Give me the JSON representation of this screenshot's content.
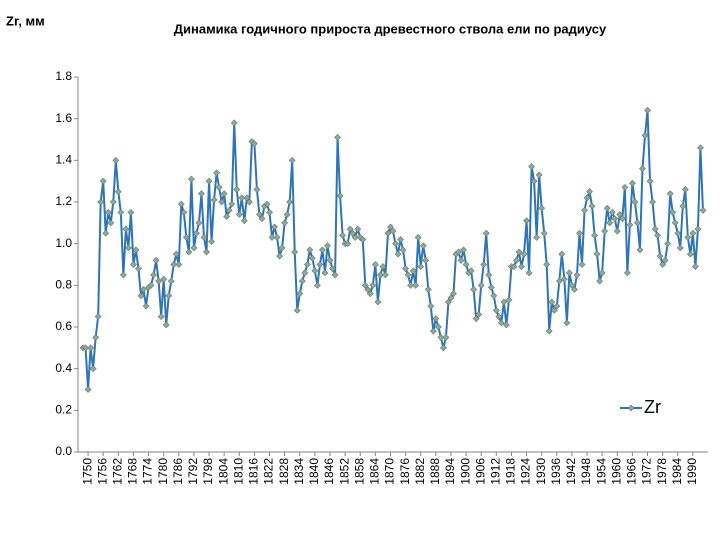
{
  "chart_data": {
    "type": "line",
    "title": "Динамика годичного прироста древестного ствола ели по радиусу",
    "y_label": "Zr, мм",
    "x": [
      1748,
      1749,
      1750,
      1751,
      1752,
      1753,
      1754,
      1755,
      1756,
      1757,
      1758,
      1759,
      1760,
      1761,
      1762,
      1763,
      1764,
      1765,
      1766,
      1767,
      1768,
      1769,
      1770,
      1771,
      1772,
      1773,
      1774,
      1775,
      1776,
      1777,
      1778,
      1779,
      1780,
      1781,
      1782,
      1783,
      1784,
      1785,
      1786,
      1787,
      1788,
      1789,
      1790,
      1791,
      1792,
      1793,
      1794,
      1795,
      1796,
      1797,
      1798,
      1799,
      1800,
      1801,
      1802,
      1803,
      1804,
      1805,
      1806,
      1807,
      1808,
      1809,
      1810,
      1811,
      1812,
      1813,
      1814,
      1815,
      1816,
      1817,
      1818,
      1819,
      1820,
      1821,
      1822,
      1823,
      1824,
      1825,
      1826,
      1827,
      1828,
      1829,
      1830,
      1831,
      1832,
      1833,
      1834,
      1835,
      1836,
      1837,
      1838,
      1839,
      1840,
      1841,
      1842,
      1843,
      1844,
      1845,
      1846,
      1847,
      1848,
      1849,
      1850,
      1851,
      1852,
      1853,
      1854,
      1855,
      1856,
      1857,
      1858,
      1859,
      1860,
      1861,
      1862,
      1863,
      1864,
      1865,
      1866,
      1867,
      1868,
      1869,
      1870,
      1871,
      1872,
      1873,
      1874,
      1875,
      1876,
      1877,
      1878,
      1879,
      1880,
      1881,
      1882,
      1883,
      1884,
      1885,
      1886,
      1887,
      1888,
      1889,
      1890,
      1891,
      1892,
      1893,
      1894,
      1895,
      1896,
      1897,
      1898,
      1899,
      1900,
      1901,
      1902,
      1903,
      1904,
      1905,
      1906,
      1907,
      1908,
      1909,
      1910,
      1911,
      1912,
      1913,
      1914,
      1915,
      1916,
      1917,
      1918,
      1919,
      1920,
      1921,
      1922,
      1923,
      1924,
      1925,
      1926,
      1927,
      1928,
      1929,
      1930,
      1931,
      1932,
      1933,
      1934,
      1935,
      1936,
      1937,
      1938,
      1939,
      1940,
      1941,
      1942,
      1943,
      1944,
      1945,
      1946,
      1947,
      1948,
      1949,
      1950,
      1951,
      1952,
      1953,
      1954,
      1955,
      1956,
      1957,
      1958,
      1959,
      1960,
      1961,
      1962,
      1963,
      1964,
      1965,
      1966,
      1967,
      1968,
      1969,
      1970,
      1971,
      1972,
      1973,
      1974,
      1975,
      1976,
      1977,
      1978,
      1979,
      1980,
      1981,
      1982,
      1983,
      1984,
      1985,
      1986,
      1987,
      1988,
      1989,
      1990,
      1991,
      1992,
      1993,
      1994
    ],
    "series": [
      {
        "name": "Zr",
        "color": "#2e75b6",
        "marker_color": "#8fa89a",
        "values": [
          0.5,
          0.5,
          0.3,
          0.5,
          0.4,
          0.55,
          0.65,
          1.2,
          1.3,
          1.05,
          1.15,
          1.1,
          1.2,
          1.4,
          1.25,
          1.15,
          0.85,
          1.07,
          0.98,
          1.15,
          0.9,
          0.97,
          0.88,
          0.75,
          0.78,
          0.7,
          0.79,
          0.8,
          0.85,
          0.92,
          0.82,
          0.65,
          0.83,
          0.61,
          0.75,
          0.82,
          0.9,
          0.95,
          0.9,
          1.19,
          1.15,
          1.03,
          0.96,
          1.31,
          0.98,
          1.05,
          1.1,
          1.24,
          1.03,
          0.96,
          1.3,
          1.01,
          1.21,
          1.34,
          1.27,
          1.2,
          1.24,
          1.13,
          1.16,
          1.19,
          1.58,
          1.26,
          1.14,
          1.22,
          1.11,
          1.22,
          1.2,
          1.49,
          1.48,
          1.26,
          1.14,
          1.12,
          1.18,
          1.19,
          1.15,
          1.03,
          1.08,
          1.03,
          0.94,
          0.98,
          1.1,
          1.14,
          1.2,
          1.4,
          0.96,
          0.68,
          0.76,
          0.82,
          0.86,
          0.9,
          0.97,
          0.93,
          0.87,
          0.8,
          0.9,
          0.97,
          0.86,
          0.99,
          0.92,
          0.88,
          0.85,
          1.51,
          1.23,
          1.04,
          1.0,
          1.0,
          1.07,
          1.05,
          1.03,
          1.07,
          1.03,
          1.02,
          0.8,
          0.78,
          0.76,
          0.8,
          0.9,
          0.72,
          0.85,
          0.89,
          0.85,
          1.05,
          1.08,
          1.06,
          1.0,
          0.95,
          1.02,
          0.97,
          0.88,
          0.85,
          0.8,
          0.87,
          0.8,
          1.03,
          0.89,
          0.99,
          0.92,
          0.78,
          0.7,
          0.58,
          0.64,
          0.6,
          0.55,
          0.5,
          0.55,
          0.72,
          0.74,
          0.76,
          0.95,
          0.96,
          0.92,
          0.97,
          0.9,
          0.86,
          0.87,
          0.78,
          0.64,
          0.66,
          0.8,
          0.9,
          1.05,
          0.85,
          0.79,
          0.75,
          0.68,
          0.65,
          0.62,
          0.72,
          0.61,
          0.73,
          0.89,
          0.89,
          0.92,
          0.96,
          0.89,
          0.95,
          1.11,
          0.86,
          1.37,
          1.3,
          1.03,
          1.33,
          1.17,
          1.05,
          0.9,
          0.58,
          0.72,
          0.68,
          0.7,
          0.82,
          0.95,
          0.83,
          0.62,
          0.86,
          0.8,
          0.78,
          0.85,
          1.05,
          0.9,
          1.16,
          1.22,
          1.25,
          1.18,
          1.04,
          0.95,
          0.82,
          0.86,
          1.06,
          1.17,
          1.1,
          1.15,
          1.12,
          1.06,
          1.14,
          1.12,
          1.27,
          0.86,
          1.09,
          1.29,
          1.2,
          1.1,
          0.97,
          1.36,
          1.52,
          1.64,
          1.3,
          1.2,
          1.07,
          1.04,
          0.94,
          0.9,
          0.92,
          1.0,
          1.24,
          1.15,
          1.1,
          1.05,
          0.98,
          1.18,
          1.26,
          1.03,
          0.95,
          1.05,
          0.89,
          1.07,
          1.46,
          1.16
        ]
      }
    ],
    "xlim": [
      1746,
      1996
    ],
    "xticks": [
      1750,
      1756,
      1762,
      1768,
      1774,
      1780,
      1786,
      1792,
      1798,
      1804,
      1810,
      1816,
      1822,
      1828,
      1834,
      1840,
      1846,
      1852,
      1858,
      1864,
      1870,
      1876,
      1882,
      1888,
      1894,
      1900,
      1906,
      1912,
      1918,
      1924,
      1930,
      1936,
      1942,
      1948,
      1954,
      1960,
      1966,
      1972,
      1978,
      1984,
      1990
    ],
    "ylim": [
      0,
      1.8
    ],
    "yticks": [
      {
        "value": 0,
        "label": "0.0"
      },
      0.2,
      0.4,
      0.6,
      0.8,
      {
        "value": 1,
        "label": "1.0"
      },
      1.2,
      1.4,
      1.6,
      1.8
    ],
    "grid": false,
    "legend": "right"
  }
}
